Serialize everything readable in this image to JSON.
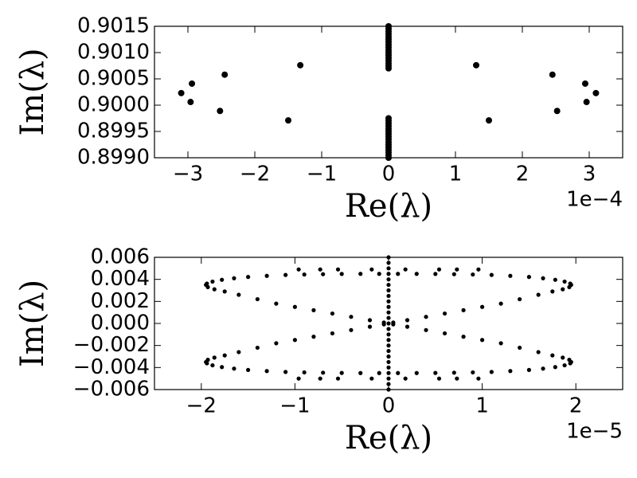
{
  "chart_data": [
    {
      "type": "scatter",
      "xlabel": "Re(λ)",
      "ylabel": "Im(λ)",
      "x_offset_label": "1e−4",
      "xlim": [
        -3.5,
        3.5
      ],
      "ylim": [
        0.899,
        0.9015
      ],
      "xticks": [
        {
          "value": -3,
          "label": "−3"
        },
        {
          "value": -2,
          "label": "−2"
        },
        {
          "value": -1,
          "label": "−1"
        },
        0,
        1,
        2,
        3
      ],
      "yticks": [
        {
          "value": 0.899,
          "label": "0.8990"
        },
        0.8995,
        {
          "value": 0.9,
          "label": "0.9000"
        },
        0.9005,
        {
          "value": 0.901,
          "label": "0.9010"
        },
        0.9015
      ],
      "color": "#000000",
      "x": [
        -3.1,
        -2.94,
        -2.96,
        -2.45,
        -2.52,
        -1.32,
        -1.5,
        1.31,
        1.5,
        2.45,
        2.52,
        2.94,
        2.96,
        3.1,
        0,
        0,
        0,
        0,
        0,
        0,
        0,
        0,
        0,
        0,
        0,
        0,
        0,
        0,
        0,
        0,
        0,
        0,
        0,
        0,
        0,
        0,
        0,
        0,
        0,
        0,
        0,
        0,
        0,
        0,
        0,
        0,
        0
      ],
      "values": [
        0.90023,
        0.90041,
        0.90006,
        0.90058,
        0.89989,
        0.90076,
        0.89971,
        0.90076,
        0.89971,
        0.90058,
        0.89989,
        0.90041,
        0.90006,
        0.90023,
        0.9007,
        0.90075,
        0.9008,
        0.90085,
        0.9009,
        0.90095,
        0.901,
        0.90105,
        0.9011,
        0.90115,
        0.9012,
        0.90125,
        0.9013,
        0.90135,
        0.9014,
        0.90145,
        0.9015,
        0.899,
        0.89905,
        0.8991,
        0.89915,
        0.8992,
        0.89925,
        0.8993,
        0.89935,
        0.8994,
        0.89945,
        0.8995,
        0.89955,
        0.8996,
        0.89965,
        0.8997,
        0.89975
      ]
    },
    {
      "type": "scatter",
      "xlabel": "Re(λ)",
      "ylabel": "Im(λ)",
      "x_offset_label": "1e−5",
      "xlim": [
        -2.5,
        2.5
      ],
      "ylim": [
        -0.006,
        0.006
      ],
      "xticks": [
        {
          "value": -2,
          "label": "−2"
        },
        {
          "value": -1,
          "label": "−1"
        },
        0,
        1,
        2
      ],
      "yticks": [
        {
          "value": -0.006,
          "label": "−0.006"
        },
        {
          "value": -0.004,
          "label": "−0.004"
        },
        {
          "value": -0.002,
          "label": "−0.002"
        },
        {
          "value": 0,
          "label": "0.000"
        },
        0.002,
        0.004,
        0.006
      ],
      "color": "#000000",
      "x": [
        0.1,
        0.3,
        0.5,
        0.7,
        0.9,
        1.1,
        1.3,
        1.5,
        1.65,
        1.78,
        1.88,
        1.94,
        1.95,
        1.93,
        1.86,
        1.75,
        1.6,
        1.4,
        1.2,
        1.0,
        0.8,
        0.6,
        0.4,
        0.2,
        0.05,
        -0.1,
        -0.3,
        -0.5,
        -0.7,
        -0.9,
        -1.1,
        -1.3,
        -1.5,
        -1.65,
        -1.78,
        -1.88,
        -1.94,
        -1.95,
        -1.93,
        -1.86,
        -1.75,
        -1.6,
        -1.4,
        -1.2,
        -1.0,
        -0.8,
        -0.6,
        -0.4,
        -0.2,
        -0.05,
        0.1,
        0.3,
        0.5,
        0.7,
        0.9,
        1.1,
        1.3,
        1.5,
        1.65,
        1.78,
        1.88,
        1.94,
        1.95,
        1.93,
        1.86,
        1.75,
        1.6,
        1.4,
        1.2,
        1.0,
        0.8,
        0.6,
        0.4,
        0.2,
        0.05,
        -0.1,
        -0.3,
        -0.5,
        -0.7,
        -0.9,
        -1.1,
        -1.3,
        -1.5,
        -1.65,
        -1.78,
        -1.88,
        -1.94,
        -1.95,
        -1.93,
        -1.86,
        -1.75,
        -1.6,
        -1.4,
        -1.2,
        -1.0,
        -0.8,
        -0.6,
        -0.4,
        -0.2,
        -0.05,
        -0.96,
        -0.73,
        -0.54,
        -0.18,
        0.18,
        0.54,
        0.73,
        0.96,
        -0.96,
        -0.73,
        -0.54,
        -0.18,
        0.18,
        0.54,
        0.73,
        0.96,
        0,
        0,
        0,
        0,
        0,
        0,
        0,
        0,
        0,
        0,
        0,
        0,
        0,
        0,
        0,
        0,
        0,
        0,
        0,
        0,
        0,
        0,
        0,
        0,
        0
      ],
      "values": [
        0.0045,
        0.0045,
        0.00449,
        0.00447,
        0.00444,
        0.0044,
        0.00432,
        0.00422,
        0.0041,
        0.00396,
        0.0038,
        0.00362,
        0.0035,
        0.0033,
        0.0031,
        0.0029,
        0.0026,
        0.0022,
        0.0018,
        0.0015,
        0.0012,
        0.0009,
        0.0006,
        0.0003,
        8e-05,
        0.0045,
        0.0045,
        0.00449,
        0.00447,
        0.00444,
        0.0044,
        0.00432,
        0.00422,
        0.0041,
        0.00396,
        0.0038,
        0.00362,
        0.0035,
        0.0033,
        0.0031,
        0.0029,
        0.0026,
        0.0022,
        0.0018,
        0.0015,
        0.0012,
        0.0009,
        0.0006,
        0.0003,
        8e-05,
        -0.0045,
        -0.0045,
        -0.00449,
        -0.00447,
        -0.00444,
        -0.0044,
        -0.00432,
        -0.00422,
        -0.0041,
        -0.00396,
        -0.0038,
        -0.00362,
        -0.0035,
        -0.0033,
        -0.0031,
        -0.0029,
        -0.0026,
        -0.0022,
        -0.0018,
        -0.0015,
        -0.0012,
        -0.0009,
        -0.0006,
        -0.0003,
        -8e-05,
        -0.0045,
        -0.0045,
        -0.00449,
        -0.00447,
        -0.00444,
        -0.0044,
        -0.00432,
        -0.00422,
        -0.0041,
        -0.00396,
        -0.0038,
        -0.00362,
        -0.0035,
        -0.0033,
        -0.0031,
        -0.0029,
        -0.0026,
        -0.0022,
        -0.0018,
        -0.0015,
        -0.0012,
        -0.0009,
        -0.0006,
        -0.0003,
        -8e-05,
        0.0049,
        0.0049,
        0.0049,
        0.0049,
        0.0049,
        0.0049,
        0.0049,
        0.0049,
        -0.005,
        -0.005,
        -0.005,
        -0.005,
        -0.005,
        -0.005,
        -0.005,
        -0.005,
        -0.006,
        -0.0055,
        -0.005,
        -0.0045,
        -0.004,
        -0.0035,
        -0.003,
        -0.0025,
        -0.002,
        -0.0015,
        -0.001,
        -0.0005,
        0,
        0.0005,
        0.001,
        0.0015,
        0.002,
        0.0025,
        0.003,
        0.0035,
        0.004,
        0.0045,
        0.005,
        0.0055,
        0.006
      ]
    }
  ]
}
